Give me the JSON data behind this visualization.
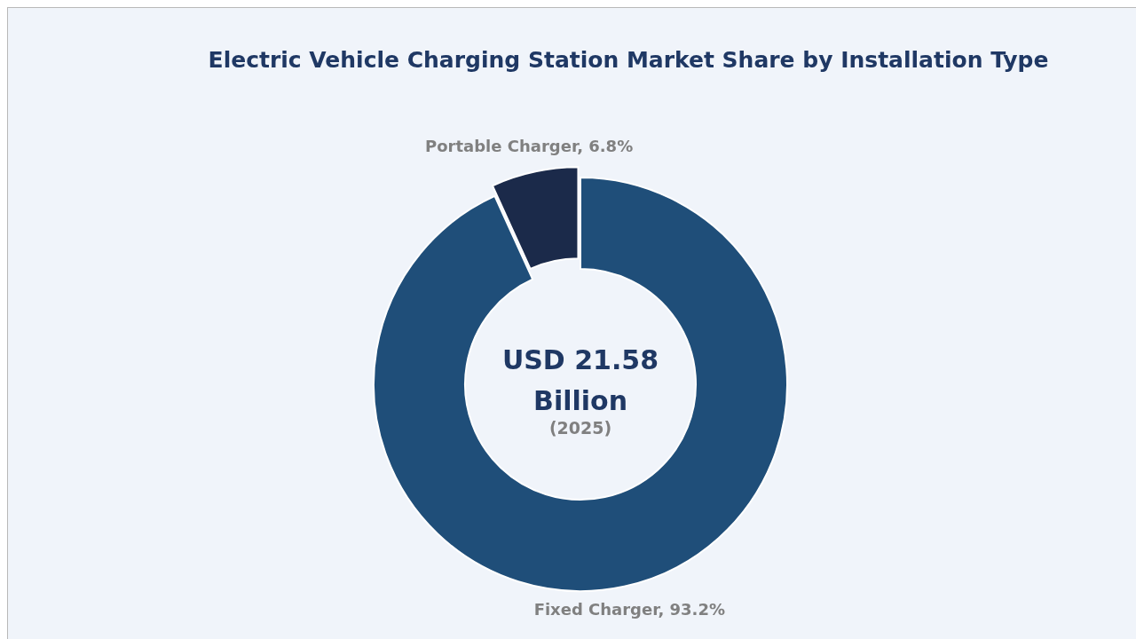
{
  "chart_data": {
    "type": "donut",
    "title": "Electric Vehicle Charging Station Market Share by Installation Type",
    "categories": [
      "Fixed Charger",
      "Portable Charger"
    ],
    "values": [
      93.2,
      6.8
    ],
    "colors": [
      "#1f4e79",
      "#1b2a4a"
    ],
    "value_labels": [
      "93.2%",
      "6.8%"
    ],
    "annotations": [
      "USD 21.58 Billion",
      "(2025)"
    ]
  }
}
